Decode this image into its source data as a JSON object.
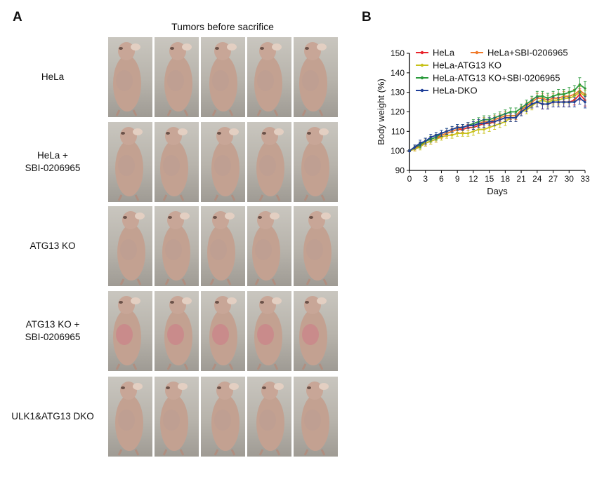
{
  "panels": {
    "a_letter": "A",
    "b_letter": "B"
  },
  "grid": {
    "title": "Tumors before sacrifice",
    "rows": [
      {
        "label_lines": [
          "HeLa"
        ]
      },
      {
        "label_lines": [
          "HeLa +",
          "SBI-0206965"
        ]
      },
      {
        "label_lines": [
          "ATG13 KO"
        ]
      },
      {
        "label_lines": [
          "ATG13 KO +",
          "SBI-0206965"
        ]
      },
      {
        "label_lines": [
          "ULK1&ATG13 DKO"
        ]
      }
    ],
    "photos_per_row": 5
  },
  "chart_data": {
    "type": "line",
    "xlabel": "Days",
    "ylabel": "Body weight (%)",
    "xlim": [
      0,
      33
    ],
    "ylim": [
      90,
      150
    ],
    "xticks": [
      0,
      3,
      6,
      9,
      12,
      15,
      18,
      21,
      24,
      27,
      30,
      33
    ],
    "yticks": [
      90,
      100,
      110,
      120,
      130,
      140,
      150
    ],
    "grid": false,
    "legend_position": "top-left",
    "x": [
      0,
      1,
      2,
      3,
      4,
      5,
      6,
      7,
      8,
      9,
      10,
      11,
      12,
      13,
      14,
      15,
      16,
      17,
      18,
      19,
      20,
      21,
      22,
      23,
      24,
      25,
      26,
      27,
      28,
      29,
      30,
      31,
      32,
      33
    ],
    "series": [
      {
        "name": "HeLa",
        "color": "#e8232b",
        "values": [
          100,
          101,
          103,
          104,
          105,
          106,
          108,
          109,
          110,
          111,
          111,
          112,
          112,
          113,
          114,
          114,
          115,
          116,
          117,
          117,
          117,
          120,
          122,
          124,
          125,
          124,
          124,
          125,
          125,
          125,
          125,
          126,
          129,
          126
        ],
        "errors": [
          0.5,
          1,
          1.5,
          1.5,
          1.5,
          1.5,
          1.5,
          1.5,
          1.5,
          1.5,
          1.5,
          1.5,
          2,
          2,
          2,
          2,
          2,
          2,
          2,
          2,
          2,
          2,
          2,
          2,
          2.5,
          2.5,
          2.5,
          2.5,
          2.5,
          2.5,
          2.5,
          2.5,
          3,
          3
        ]
      },
      {
        "name": "HeLa+SBI-0206965",
        "color": "#f07a2a",
        "values": [
          100,
          102,
          103,
          105,
          106,
          107,
          108,
          109,
          110,
          111,
          112,
          113,
          113,
          114,
          115,
          115,
          116,
          117,
          118,
          118,
          118,
          121,
          123,
          125,
          127,
          127,
          126,
          127,
          127,
          128,
          128,
          129,
          131,
          129
        ],
        "errors": [
          0.5,
          1,
          1.5,
          1.5,
          1.5,
          1.5,
          1.5,
          1.5,
          1.5,
          1.5,
          1.5,
          1.5,
          2,
          2,
          2,
          2,
          2,
          2,
          2,
          2,
          2,
          2,
          2,
          2,
          2.5,
          2.5,
          2.5,
          2.5,
          2.5,
          2.5,
          2.5,
          2.5,
          3,
          3
        ]
      },
      {
        "name": "HeLa-ATG13 KO",
        "color": "#c7c21a",
        "values": [
          100,
          101,
          102,
          104,
          105,
          106,
          107,
          108,
          108,
          109,
          109,
          109,
          110,
          111,
          111,
          112,
          113,
          114,
          115,
          117,
          117,
          120,
          121,
          123,
          125,
          126,
          125,
          126,
          126,
          127,
          127,
          128,
          130,
          128
        ],
        "errors": [
          0.5,
          1,
          1.5,
          1.5,
          1.5,
          1.5,
          1.5,
          1.5,
          1.5,
          1.5,
          1.5,
          1.5,
          2,
          2,
          2,
          2,
          2,
          2,
          2,
          2,
          2,
          2,
          2,
          2,
          2.5,
          2.5,
          2.5,
          2.5,
          2.5,
          2.5,
          2.5,
          2.5,
          3,
          3
        ]
      },
      {
        "name": "HeLa-ATG13 KO+SBI-0206965",
        "color": "#2a9a3c",
        "values": [
          100,
          102,
          103,
          105,
          106,
          107,
          109,
          110,
          111,
          112,
          112,
          113,
          114,
          115,
          116,
          116,
          117,
          118,
          119,
          120,
          120,
          122,
          124,
          126,
          128,
          128,
          127,
          128,
          129,
          129,
          130,
          131,
          134,
          132
        ],
        "errors": [
          0.5,
          1,
          1.5,
          1.5,
          1.5,
          1.5,
          1.5,
          1.5,
          1.5,
          1.5,
          1.5,
          1.5,
          2,
          2,
          2,
          2,
          2,
          2,
          2,
          2,
          2,
          2,
          2,
          2,
          2.5,
          2.5,
          2.5,
          2.5,
          2.5,
          2.5,
          2.5,
          2.5,
          3.5,
          3.5
        ]
      },
      {
        "name": "HeLa-DKO",
        "color": "#1f3f99",
        "values": [
          100,
          102,
          104,
          105,
          107,
          108,
          109,
          110,
          111,
          112,
          112,
          113,
          113,
          114,
          114,
          115,
          115,
          116,
          117,
          117,
          117,
          120,
          122,
          124,
          125,
          124,
          124,
          125,
          125,
          125,
          125,
          125,
          127,
          125
        ],
        "errors": [
          0.5,
          1,
          1.5,
          1.5,
          1.5,
          1.5,
          1.5,
          1.5,
          1.5,
          1.5,
          1.5,
          1.5,
          2,
          2,
          2,
          2,
          2,
          2,
          2,
          2,
          2,
          2,
          2,
          2,
          2.5,
          2.5,
          2.5,
          2.5,
          2.5,
          2.5,
          2.5,
          2.5,
          3,
          3
        ]
      }
    ]
  }
}
